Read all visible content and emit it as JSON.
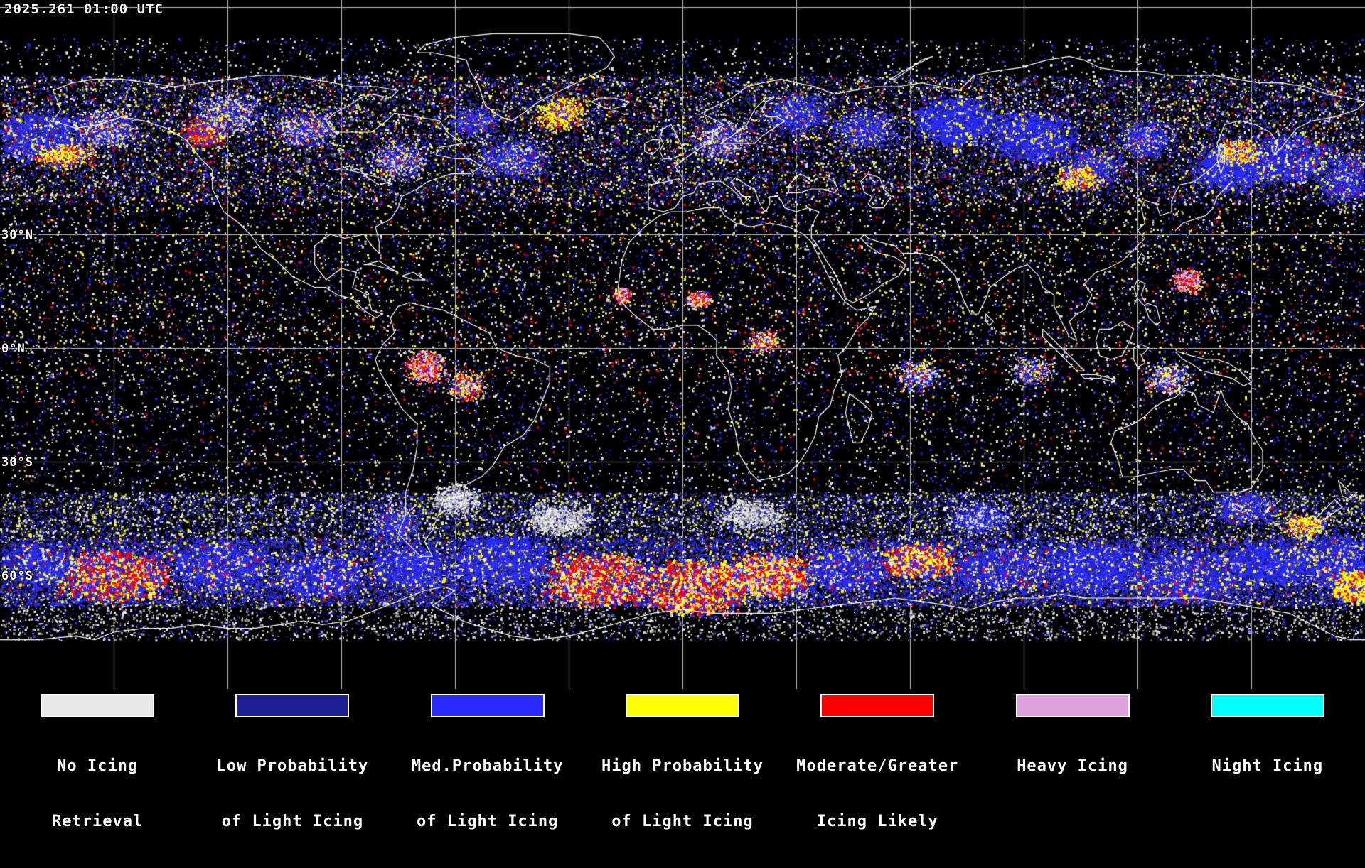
{
  "header": {
    "timestamp": "2025.261 01:00 UTC"
  },
  "map": {
    "lat_labels": [
      {
        "text": "30°N"
      },
      {
        "text": "0°N"
      },
      {
        "text": "30°S"
      },
      {
        "text": "60°S"
      }
    ]
  },
  "legend": {
    "items": [
      {
        "id": "no-icing-retrieval",
        "color": "#e8e8e8",
        "line1": "No Icing",
        "line2": "Retrieval"
      },
      {
        "id": "low-probability",
        "color": "#1f1f94",
        "line1": "Low Probability",
        "line2": "of Light Icing"
      },
      {
        "id": "med-probability",
        "color": "#2a2aff",
        "line1": "Med.Probability",
        "line2": "of Light Icing"
      },
      {
        "id": "high-probability",
        "color": "#ffff00",
        "line1": "High Probability",
        "line2": "of Light Icing"
      },
      {
        "id": "moderate-greater",
        "color": "#ff0000",
        "line1": "Moderate/Greater",
        "line2": "Icing Likely"
      },
      {
        "id": "heavy-icing",
        "color": "#dda0dd",
        "line1": "Heavy Icing",
        "line2": ""
      },
      {
        "id": "night-icing",
        "color": "#00ffff",
        "line1": "Night Icing",
        "line2": ""
      }
    ]
  }
}
